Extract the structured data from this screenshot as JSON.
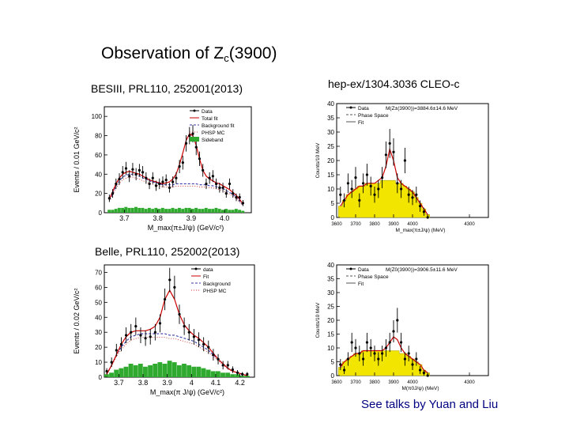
{
  "slide": {
    "title_main": "Observation of Z",
    "title_sub": "c",
    "title_tail": "(3900)",
    "besiii_ref": "BESIII, PRL110, 252001(2013)",
    "cleo_ref": "hep-ex/1304.3036 CLEO-c",
    "belle_ref": "Belle, PRL110, 252002(2013)",
    "footer": "See talks by Yuan and Liu"
  },
  "colors": {
    "data": "#000000",
    "fit": "#cc0000",
    "background": "#3a3aaa",
    "phsp": "#cc3333",
    "sideband": "#2faa2f",
    "cleo_fill": "#f2e600",
    "footer_text": "#000080"
  },
  "chart_data": [
    {
      "id": "besiii",
      "type": "bar",
      "title": "",
      "xlabel": "M_max(π±J/ψ) (GeV/c²)",
      "ylabel": "Events / 0.01 GeV/c²",
      "xlim": [
        3.64,
        4.08
      ],
      "ylim": [
        0,
        110
      ],
      "xticks": [
        "3.7",
        "3.8",
        "3.9",
        "4.0"
      ],
      "yticks": [
        "0",
        "20",
        "40",
        "60",
        "80",
        "100"
      ],
      "legend": [
        "Data",
        "Total fit",
        "Background fit",
        "PHSP MC",
        "Sideband"
      ],
      "x": [
        3.655,
        3.665,
        3.675,
        3.685,
        3.695,
        3.705,
        3.715,
        3.725,
        3.735,
        3.745,
        3.755,
        3.765,
        3.775,
        3.785,
        3.795,
        3.805,
        3.815,
        3.825,
        3.835,
        3.845,
        3.855,
        3.865,
        3.875,
        3.885,
        3.895,
        3.905,
        3.915,
        3.925,
        3.935,
        3.945,
        3.955,
        3.965,
        3.975,
        3.985,
        3.995,
        4.005,
        4.015,
        4.025,
        4.035,
        4.045,
        4.055
      ],
      "data": [
        15,
        20,
        30,
        35,
        42,
        46,
        38,
        45,
        40,
        44,
        42,
        36,
        30,
        36,
        28,
        30,
        32,
        34,
        26,
        32,
        36,
        48,
        52,
        72,
        80,
        82,
        68,
        56,
        44,
        30,
        36,
        38,
        30,
        26,
        26,
        20,
        30,
        20,
        16,
        16,
        10
      ],
      "fit": [
        14,
        22,
        30,
        36,
        40,
        42,
        43,
        42,
        41,
        40,
        38,
        36,
        34,
        33,
        32,
        31,
        30,
        31,
        32,
        35,
        40,
        50,
        62,
        75,
        82,
        80,
        70,
        56,
        44,
        38,
        35,
        33,
        31,
        30,
        28,
        26,
        24,
        21,
        18,
        14,
        9
      ],
      "background": [
        13,
        20,
        28,
        33,
        37,
        39,
        40,
        40,
        39,
        38,
        36,
        35,
        33,
        32,
        31,
        30,
        29,
        29,
        29,
        29,
        30,
        30,
        30,
        30,
        30,
        30,
        30,
        29,
        29,
        29,
        28,
        28,
        27,
        26,
        25,
        23,
        21,
        19,
        16,
        12,
        8
      ],
      "sideband": [
        3,
        3,
        4,
        5,
        5,
        6,
        5,
        5,
        6,
        5,
        5,
        4,
        5,
        4,
        5,
        4,
        5,
        4,
        4,
        5,
        4,
        5,
        4,
        5,
        5,
        4,
        5,
        4,
        4,
        5,
        4,
        4,
        5,
        4,
        3,
        4,
        3,
        3,
        4,
        3,
        2
      ]
    },
    {
      "id": "cleo",
      "type": "bar",
      "title": "",
      "annotation": "M(Z±(3900))=3884.6±14.6 MeV",
      "xlabel": "M_max(π±J/ψ) (MeV)",
      "ylabel": "Counts/10 MeV",
      "xlim": [
        3600,
        4400
      ],
      "ylim": [
        0,
        40
      ],
      "xticks": [
        "3600",
        "3700",
        "3800",
        "3900",
        "4000",
        "4300"
      ],
      "yticks": [
        "0",
        "5",
        "10",
        "15",
        "20",
        "25",
        "30",
        "35",
        "40"
      ],
      "legend": [
        "Data",
        "Phase Space",
        "Fit"
      ],
      "x": [
        3620,
        3640,
        3660,
        3680,
        3700,
        3720,
        3740,
        3760,
        3780,
        3800,
        3820,
        3840,
        3860,
        3880,
        3900,
        3920,
        3940,
        3960,
        3980,
        4000,
        4020,
        4040,
        4060,
        4080
      ],
      "data": [
        8,
        6,
        12,
        10,
        14,
        6,
        12,
        15,
        11,
        8,
        10,
        14,
        22,
        26,
        23,
        12,
        10,
        20,
        8,
        7,
        8,
        4,
        2,
        0
      ],
      "phase_space": [
        4,
        6,
        8,
        9,
        10,
        11,
        11,
        12,
        12,
        12,
        12,
        13,
        13,
        13,
        13,
        12,
        12,
        11,
        10,
        9,
        7,
        5,
        3,
        1
      ],
      "fit": [
        4,
        6,
        8,
        9,
        10,
        11,
        11,
        12,
        12,
        12,
        13,
        14,
        18,
        24,
        20,
        14,
        12,
        11,
        10,
        9,
        7,
        5,
        3,
        1
      ]
    },
    {
      "id": "belle",
      "type": "bar",
      "title": "",
      "xlabel": "M_max(π J/ψ) (GeV/c²)",
      "ylabel": "Events / 0.02 GeV/c²",
      "xlim": [
        3.64,
        4.26
      ],
      "ylim": [
        0,
        75
      ],
      "xticks": [
        "3.7",
        "3.8",
        "3.9",
        "4",
        "4.1",
        "4.2"
      ],
      "yticks": [
        "0",
        "10",
        "20",
        "30",
        "40",
        "50",
        "60",
        "70"
      ],
      "legend": [
        "data",
        "Fit",
        "Background",
        "PHSP MC"
      ],
      "x": [
        3.65,
        3.67,
        3.69,
        3.71,
        3.73,
        3.75,
        3.77,
        3.79,
        3.81,
        3.83,
        3.85,
        3.87,
        3.89,
        3.91,
        3.93,
        3.95,
        3.97,
        3.99,
        4.01,
        4.03,
        4.05,
        4.07,
        4.09,
        4.11,
        4.13,
        4.15,
        4.17,
        4.19,
        4.21,
        4.23
      ],
      "data": [
        4,
        10,
        18,
        22,
        28,
        30,
        34,
        28,
        26,
        27,
        30,
        36,
        52,
        65,
        60,
        42,
        34,
        30,
        27,
        25,
        22,
        20,
        15,
        12,
        8,
        8,
        5,
        3,
        2,
        2
      ],
      "fit": [
        2,
        8,
        15,
        22,
        27,
        30,
        31,
        31,
        31,
        32,
        34,
        40,
        52,
        58,
        52,
        42,
        35,
        31,
        28,
        26,
        23,
        20,
        16,
        12,
        9,
        6,
        4,
        3,
        2,
        1
      ],
      "background": [
        2,
        8,
        15,
        20,
        24,
        27,
        28,
        29,
        29,
        29,
        29,
        29,
        29,
        28,
        28,
        27,
        26,
        25,
        24,
        22,
        20,
        18,
        15,
        12,
        9,
        6,
        4,
        3,
        2,
        1
      ],
      "sideband": [
        2,
        3,
        5,
        6,
        7,
        9,
        8,
        9,
        7,
        8,
        9,
        10,
        9,
        11,
        10,
        8,
        9,
        8,
        7,
        7,
        6,
        5,
        4,
        4,
        3,
        3,
        2,
        2,
        1,
        1
      ]
    },
    {
      "id": "cleo_neutral",
      "type": "bar",
      "title": "",
      "annotation": "M(Z0(3900))=3906.5±11.6 MeV",
      "xlabel": "M(π0J/ψ) (MeV)",
      "ylabel": "Counts/10 MeV",
      "xlim": [
        3600,
        4400
      ],
      "ylim": [
        0,
        40
      ],
      "xticks": [
        "3600",
        "3700",
        "3800",
        "3900",
        "4000",
        "4300"
      ],
      "yticks": [
        "0",
        "5",
        "10",
        "15",
        "20",
        "25",
        "30",
        "35",
        "40"
      ],
      "legend": [
        "Data",
        "Phase Space",
        "Fit"
      ],
      "x": [
        3620,
        3640,
        3660,
        3680,
        3700,
        3720,
        3740,
        3760,
        3780,
        3800,
        3820,
        3840,
        3860,
        3880,
        3900,
        3920,
        3940,
        3960,
        3980,
        4000,
        4020,
        4040,
        4060,
        4080
      ],
      "data": [
        4,
        2,
        6,
        12,
        10,
        8,
        6,
        12,
        10,
        8,
        6,
        8,
        10,
        12,
        16,
        20,
        12,
        6,
        8,
        4,
        6,
        2,
        1,
        0
      ],
      "phase_space": [
        3,
        5,
        6,
        7,
        8,
        8,
        9,
        9,
        9,
        9,
        9,
        9,
        9,
        9,
        9,
        9,
        8,
        8,
        7,
        6,
        5,
        4,
        2,
        1
      ],
      "fit": [
        3,
        5,
        6,
        7,
        8,
        8,
        9,
        9,
        9,
        9,
        9,
        9,
        10,
        12,
        14,
        13,
        10,
        8,
        7,
        6,
        5,
        4,
        2,
        1
      ]
    }
  ]
}
